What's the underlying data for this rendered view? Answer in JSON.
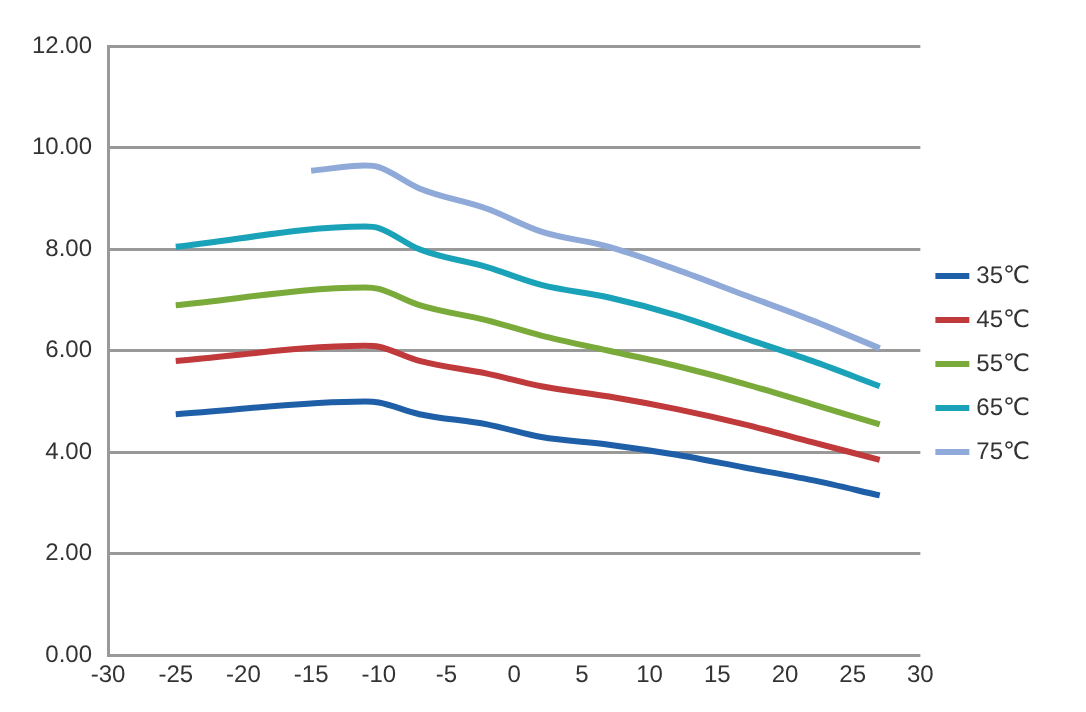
{
  "chart_data": {
    "type": "line",
    "x": [
      -25,
      -11,
      -10,
      -7,
      -2,
      2,
      7,
      12,
      17,
      22,
      27
    ],
    "series": [
      {
        "name": "35℃",
        "color": "#1f5fa8",
        "values": [
          4.75,
          5.0,
          4.98,
          4.75,
          4.55,
          4.3,
          4.15,
          3.95,
          3.7,
          3.45,
          3.15
        ]
      },
      {
        "name": "45℃",
        "color": "#c0393b",
        "values": [
          5.8,
          6.1,
          6.08,
          5.8,
          5.55,
          5.3,
          5.1,
          4.85,
          4.55,
          4.2,
          3.85
        ]
      },
      {
        "name": "55℃",
        "color": "#7aaa3a",
        "values": [
          6.9,
          7.25,
          7.22,
          6.9,
          6.6,
          6.3,
          6.0,
          5.7,
          5.35,
          4.95,
          4.55
        ]
      },
      {
        "name": "65℃",
        "color": "#1aa3b8",
        "values": [
          8.05,
          8.45,
          8.42,
          8.0,
          7.65,
          7.3,
          7.05,
          6.7,
          6.25,
          5.8,
          5.3
        ]
      },
      {
        "name": "75℃",
        "color": "#8fa9d8",
        "x": [
          -15,
          -11,
          -10,
          -7,
          -2,
          2,
          7,
          12,
          17,
          22,
          27
        ],
        "values": [
          9.55,
          9.65,
          9.62,
          9.2,
          8.8,
          8.35,
          8.05,
          7.6,
          7.1,
          6.6,
          6.05
        ]
      }
    ],
    "xlim": [
      -30,
      30
    ],
    "xticks": [
      -30,
      -25,
      -20,
      -15,
      -10,
      -5,
      0,
      5,
      10,
      15,
      20,
      25,
      30
    ],
    "ylim": [
      0,
      12
    ],
    "yticks": [
      {
        "value": 0,
        "label": "0.00"
      },
      {
        "value": 2,
        "label": "2.00"
      },
      {
        "value": 4,
        "label": "4.00"
      },
      {
        "value": 6,
        "label": "6.00"
      },
      {
        "value": 8,
        "label": "8.00"
      },
      {
        "value": 10,
        "label": "10.00"
      },
      {
        "value": 12,
        "label": "12.00"
      }
    ],
    "grid": "y",
    "legend": "right",
    "marker": "none",
    "line_style": "solid"
  }
}
